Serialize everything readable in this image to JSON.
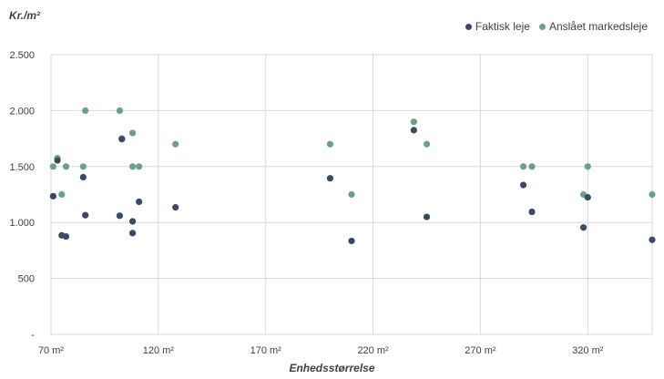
{
  "chart_data": {
    "type": "scatter",
    "title": "",
    "ylabel": "Kr./m²",
    "xlabel": "Enhedsstørrelse",
    "xlim": [
      70,
      350
    ],
    "ylim": [
      0,
      2500
    ],
    "x_ticks": [
      70,
      120,
      170,
      220,
      270,
      320
    ],
    "x_tick_labels": [
      "70 m²",
      "120 m²",
      "170 m²",
      "220 m²",
      "270 m²",
      "320 m²"
    ],
    "y_ticks": [
      0,
      500,
      1000,
      1500,
      2000,
      2500
    ],
    "y_tick_labels": [
      "-",
      "500",
      "1.000",
      "1.500",
      "2.000",
      "2.500"
    ],
    "grid": true,
    "legend_position": "top-right",
    "series": [
      {
        "name": "Faktisk leje",
        "color": "#3b4a63",
        "points": [
          [
            71,
            1235
          ],
          [
            73,
            1555
          ],
          [
            75,
            885
          ],
          [
            77,
            875
          ],
          [
            85,
            1405
          ],
          [
            86,
            1065
          ],
          [
            102,
            1060
          ],
          [
            103,
            1745
          ],
          [
            108,
            1010
          ],
          [
            108,
            905
          ],
          [
            111,
            1185
          ],
          [
            128,
            1135
          ],
          [
            200,
            1395
          ],
          [
            210,
            835
          ],
          [
            239,
            1825
          ],
          [
            245,
            1050
          ],
          [
            290,
            1335
          ],
          [
            294,
            1095
          ],
          [
            318,
            955
          ],
          [
            320,
            1225
          ],
          [
            350,
            845
          ]
        ]
      },
      {
        "name": "Anslået markedsleje",
        "color": "#6f9e8b",
        "points": [
          [
            71,
            1500
          ],
          [
            73,
            1575
          ],
          [
            75,
            1250
          ],
          [
            77,
            1500
          ],
          [
            85,
            1500
          ],
          [
            86,
            2000
          ],
          [
            102,
            2000
          ],
          [
            103,
            1750
          ],
          [
            108,
            1800
          ],
          [
            108,
            1500
          ],
          [
            111,
            1500
          ],
          [
            128,
            1700
          ],
          [
            200,
            1700
          ],
          [
            210,
            1250
          ],
          [
            239,
            1900
          ],
          [
            245,
            1700
          ],
          [
            290,
            1500
          ],
          [
            294,
            1500
          ],
          [
            318,
            1250
          ],
          [
            320,
            1500
          ],
          [
            350,
            1250
          ]
        ]
      }
    ]
  }
}
